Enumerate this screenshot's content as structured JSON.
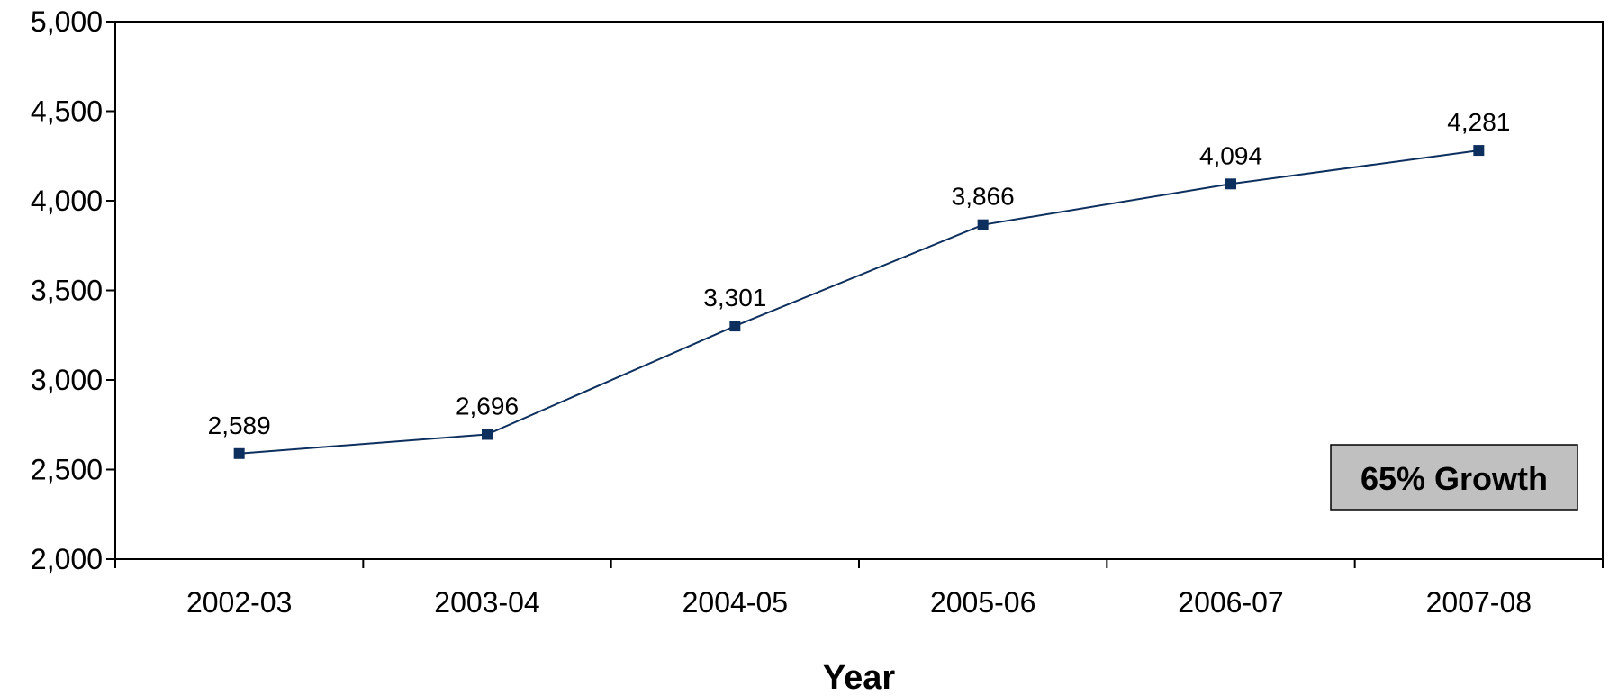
{
  "chart_data": {
    "type": "line",
    "categories": [
      "2002-03",
      "2003-04",
      "2004-05",
      "2005-06",
      "2006-07",
      "2007-08"
    ],
    "series": [
      {
        "values": [
          2589,
          2696,
          3301,
          3866,
          4094,
          4281
        ]
      }
    ],
    "data_labels": [
      "2,589",
      "2,696",
      "3,301",
      "3,866",
      "4,094",
      "4,281"
    ],
    "yticks": [
      2000,
      2500,
      3000,
      3500,
      4000,
      4500,
      5000
    ],
    "ytick_labels": [
      "2,000",
      "2,500",
      "3,000",
      "3,500",
      "4,000",
      "4,500",
      "5,000"
    ],
    "ylim": [
      2000,
      5000
    ],
    "xlabel": "Year",
    "ylabel": "",
    "title": "",
    "grid": false,
    "annotation": "65% Growth",
    "colors": {
      "line": "#0d2f5e",
      "marker": "#0d2f5e",
      "callout_fill": "#c0c0c0",
      "axis": "#000000"
    }
  }
}
